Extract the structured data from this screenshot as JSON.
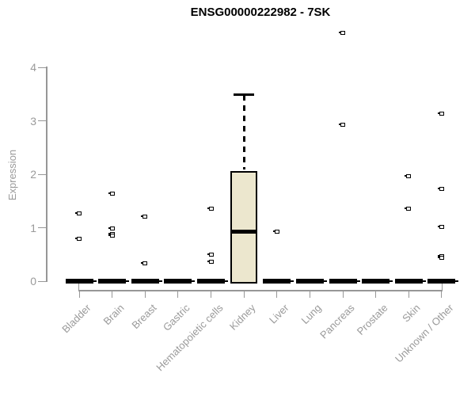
{
  "title": "ENSG00000222982 - 7SK",
  "chart_data": {
    "type": "boxplot",
    "title": "ENSG00000222982 - 7SK",
    "xlabel": "",
    "ylabel": "Expression",
    "ylim": [
      0,
      4
    ],
    "yticks": [
      0,
      1,
      2,
      3,
      4
    ],
    "grid": false,
    "legend": false,
    "categories": [
      "Bladder",
      "Brain",
      "Breast",
      "Gastric",
      "Hematopoietic cells",
      "Kidney",
      "Liver",
      "Lung",
      "Pancreas",
      "Prostate",
      "Skin",
      "Unknown / Other"
    ],
    "boxes": [
      {
        "category": "Bladder",
        "q1": 0,
        "median": 0,
        "q3": 0,
        "whisker_low": 0,
        "whisker_high": 0,
        "outliers": [
          1.27,
          0.8
        ]
      },
      {
        "category": "Brain",
        "q1": 0,
        "median": 0,
        "q3": 0,
        "whisker_low": 0,
        "whisker_high": 0,
        "outliers": [
          1.63,
          0.99,
          0.88,
          0.85
        ]
      },
      {
        "category": "Breast",
        "q1": 0,
        "median": 0,
        "q3": 0,
        "whisker_low": 0,
        "whisker_high": 0,
        "outliers": [
          1.21,
          0.34
        ]
      },
      {
        "category": "Gastric",
        "q1": 0,
        "median": 0,
        "q3": 0,
        "whisker_low": 0,
        "whisker_high": 0,
        "outliers": []
      },
      {
        "category": "Hematopoietic cells",
        "q1": 0,
        "median": 0,
        "q3": 0,
        "whisker_low": 0,
        "whisker_high": 0,
        "outliers": [
          1.35,
          0.49,
          0.36
        ]
      },
      {
        "category": "Kidney",
        "q1": 0,
        "median": 0.93,
        "q3": 2.06,
        "whisker_low": 0,
        "whisker_high": 3.48,
        "outliers": []
      },
      {
        "category": "Liver",
        "q1": 0,
        "median": 0,
        "q3": 0,
        "whisker_low": 0,
        "whisker_high": 0,
        "outliers": [
          0.93
        ]
      },
      {
        "category": "Lung",
        "q1": 0,
        "median": 0,
        "q3": 0,
        "whisker_low": 0,
        "whisker_high": 0,
        "outliers": []
      },
      {
        "category": "Pancreas",
        "q1": 0,
        "median": 0,
        "q3": 0,
        "whisker_low": 0,
        "whisker_high": 0,
        "outliers": [
          4.64,
          2.92
        ]
      },
      {
        "category": "Prostate",
        "q1": 0,
        "median": 0,
        "q3": 0,
        "whisker_low": 0,
        "whisker_high": 0,
        "outliers": []
      },
      {
        "category": "Skin",
        "q1": 0,
        "median": 0,
        "q3": 0,
        "whisker_low": 0,
        "whisker_high": 0,
        "outliers": [
          1.97,
          1.36
        ]
      },
      {
        "category": "Unknown / Other",
        "q1": 0,
        "median": 0,
        "q3": 0,
        "whisker_low": 0,
        "whisker_high": 0,
        "outliers": [
          3.14,
          1.72,
          1.02,
          0.47,
          0.44
        ]
      }
    ],
    "colors": {
      "box_fill": "#ECE7CE",
      "box_border": "#000000",
      "marker": "#000000",
      "axis": "#979797",
      "tick_text": "#9A9A9A",
      "title_text": "#000000"
    }
  }
}
